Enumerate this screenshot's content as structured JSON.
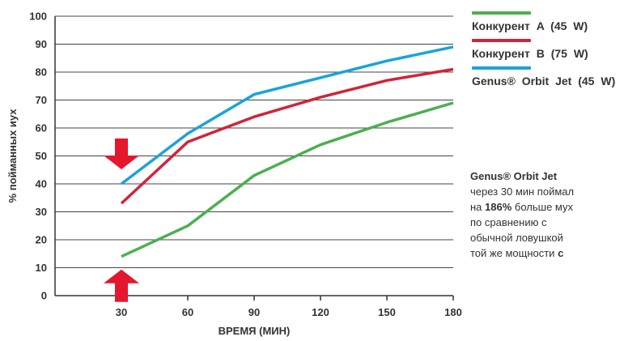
{
  "chart_data": {
    "type": "line",
    "xlabel": "ВРЕМЯ (МИН)",
    "ylabel": "% пойманных иух",
    "x": [
      30,
      60,
      90,
      120,
      150,
      180
    ],
    "xlim": [
      0,
      180
    ],
    "ylim": [
      0,
      100
    ],
    "yticks": [
      "0",
      "10",
      "20",
      "30",
      "40",
      "50",
      "60",
      "70",
      "80",
      "90",
      "100"
    ],
    "xticks": [
      "30",
      "60",
      "90",
      "120",
      "150",
      "180"
    ],
    "grid": true,
    "series": [
      {
        "name": "Конкурент A (45 W)",
        "color": "#4CAF50",
        "x": [
          30,
          60,
          90,
          120,
          150,
          180
        ],
        "values": [
          14,
          25,
          43,
          54,
          62,
          69
        ]
      },
      {
        "name": "Конкурент B (75 W)",
        "color": "#D0253A",
        "x": [
          30,
          60,
          90,
          120,
          150,
          180
        ],
        "values": [
          33,
          55,
          64,
          71,
          77,
          81
        ]
      },
      {
        "name": "Genus® Orbit Jet (45 W)",
        "color": "#1AA3DA",
        "x": [
          30,
          60,
          90,
          120,
          150,
          180
        ],
        "values": [
          40,
          58,
          72,
          78,
          84,
          89
        ]
      }
    ],
    "legend_position": "right"
  },
  "legend": [
    {
      "color": "#4CAF50",
      "label": "Конкурент A (45 W)"
    },
    {
      "color": "#D0253A",
      "label": "Конкурент B (75 W)"
    },
    {
      "color": "#1AA3DA",
      "label": "Genus® Orbit Jet (45 W)"
    }
  ],
  "annotation": {
    "line1": "Genus® Orbit Jet",
    "line2": "через 30 мин поймал",
    "line3_pre": "на ",
    "line3_bold": "186%",
    "line3_post": " больше мух",
    "line4": "по сравнению с",
    "line5": "обычной ловушкой",
    "line6_pre": "той же мощности ",
    "line6_bold": "с"
  },
  "arrows": {
    "color": "#E4172D"
  }
}
